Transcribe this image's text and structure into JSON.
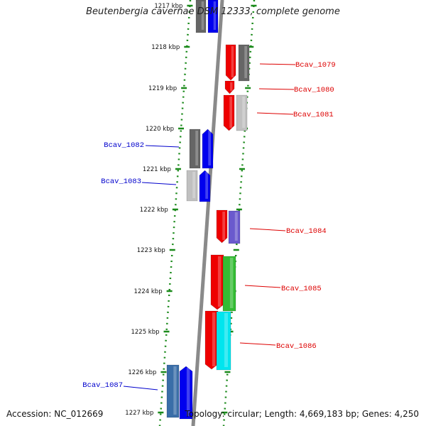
{
  "title": "Beutenbergia cavernae DSM 12333, complete genome",
  "accession": "Accession: NC_012669",
  "topology": "Topology: circular; Length: 4,669,183 bp; Genes: 4,250",
  "scale_labels": [
    "1217 kbp",
    "1218 kbp",
    "1219 kbp",
    "1220 kbp",
    "1221 kbp",
    "1222 kbp",
    "1223 kbp",
    "1224 kbp",
    "1225 kbp",
    "1226 kbp",
    "1227 kbp"
  ],
  "genes_right": [
    {
      "id": "Bcav_1079",
      "color": "#dd0000"
    },
    {
      "id": "Bcav_1080",
      "color": "#dd0000"
    },
    {
      "id": "Bcav_1081",
      "color": "#dd0000"
    },
    {
      "id": "Bcav_1084",
      "color": "#dd0000"
    },
    {
      "id": "Bcav_1085",
      "color": "#dd0000"
    },
    {
      "id": "Bcav_1086",
      "color": "#dd0000"
    }
  ],
  "genes_left": [
    {
      "id": "Bcav_1082",
      "color": "#0000cc"
    },
    {
      "id": "Bcav_1083",
      "color": "#0000cc"
    },
    {
      "id": "Bcav_1087",
      "color": "#0000cc"
    }
  ]
}
